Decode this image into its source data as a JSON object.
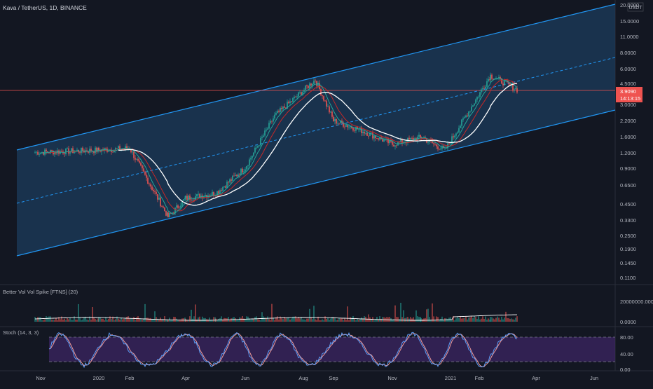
{
  "header": {
    "title": "Kava / TetherUS, 1D, BINANCE",
    "currency_badge": "USDT"
  },
  "price_panel": {
    "y_ticks": [
      "20.0000",
      "15.0000",
      "11.0000",
      "8.0000",
      "6.0000",
      "4.5000",
      "3.0000",
      "2.2000",
      "1.6000",
      "1.2000",
      "0.9000",
      "0.6500",
      "0.4500",
      "0.3300",
      "0.2500",
      "0.1900",
      "0.1450",
      "0.1100"
    ],
    "last_price": "3.9090",
    "countdown": "14:13:15",
    "colors": {
      "up": "#26a69a",
      "down": "#ef5350",
      "channel": "#2196f3",
      "channel_fill": "#1c3c5c",
      "ma_white": "#ffffff",
      "ma_red": "#c62828",
      "ma_green": "#26a69a",
      "price_line": "#ef5350"
    }
  },
  "volume_panel": {
    "label": "Better Vol Vol Spike [FTNS] (20)",
    "y_ticks": [
      "20000000.0000",
      "0.0000"
    ]
  },
  "stoch_panel": {
    "label": "Stoch (14, 3, 3)",
    "y_ticks": [
      "80.00",
      "40.00",
      "0.00"
    ],
    "colors": {
      "band": "#4a2a7a",
      "k": "#5b9cf6",
      "d": "#ef9a9a"
    }
  },
  "time_axis": [
    "Nov",
    "2020",
    "Feb",
    "Apr",
    "Jun",
    "Aug",
    "Sep",
    "Nov",
    "2021",
    "Feb",
    "Apr",
    "Jun"
  ],
  "chart_data": {
    "type": "candlestick",
    "symbol": "Kava / TetherUS",
    "interval": "1D",
    "exchange": "BINANCE",
    "scale": "log",
    "ylim": [
      0.11,
      20.0
    ],
    "approx_close_path": [
      {
        "x": "Nov",
        "y": 1.2
      },
      {
        "x": "2020",
        "y": 1.25
      },
      {
        "x": "Feb",
        "y": 1.3
      },
      {
        "x": "Mar",
        "y": 0.35
      },
      {
        "x": "Apr",
        "y": 0.5
      },
      {
        "x": "May",
        "y": 0.55
      },
      {
        "x": "Jun",
        "y": 0.9
      },
      {
        "x": "Jul",
        "y": 2.4
      },
      {
        "x": "Aug",
        "y": 4.8
      },
      {
        "x": "Sep",
        "y": 2.2
      },
      {
        "x": "Oct",
        "y": 1.8
      },
      {
        "x": "Nov",
        "y": 1.4
      },
      {
        "x": "Dec",
        "y": 1.6
      },
      {
        "x": "2021",
        "y": 1.25
      },
      {
        "x": "Feb",
        "y": 5.2
      },
      {
        "x": "Mar",
        "y": 3.91
      }
    ]
  }
}
